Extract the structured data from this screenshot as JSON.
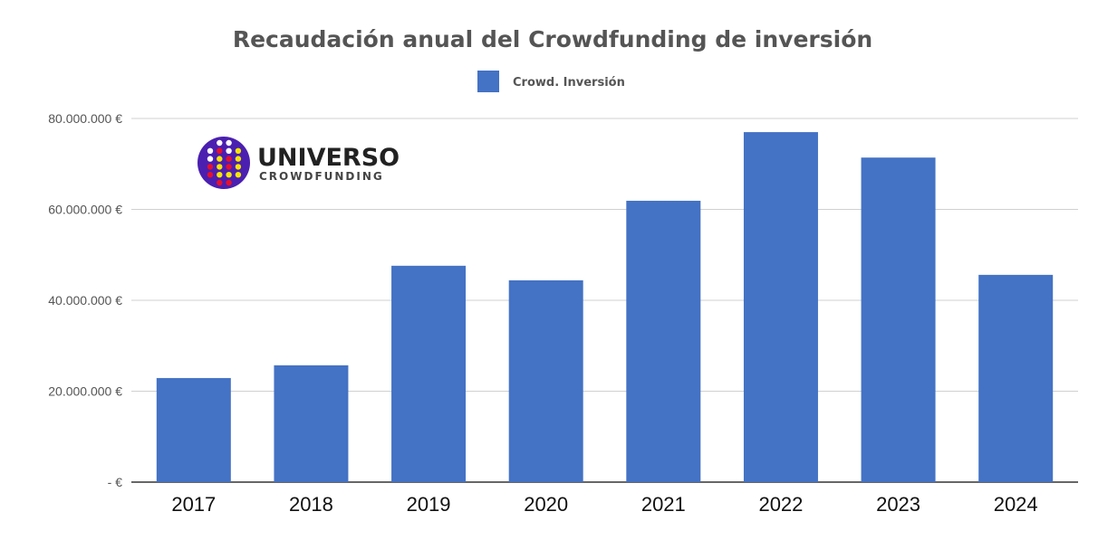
{
  "chart_data": {
    "type": "bar",
    "title": "Recaudación anual del Crowdfunding de inversión",
    "legend": [
      "Crowd. Inversión"
    ],
    "legend_position": "top-center",
    "categories": [
      "2017",
      "2018",
      "2019",
      "2020",
      "2021",
      "2022",
      "2023",
      "2024"
    ],
    "series": [
      {
        "name": "Crowd. Inversión",
        "values": [
          22900000,
          25700000,
          47600000,
          44400000,
          61900000,
          77000000,
          71400000,
          45600000
        ]
      }
    ],
    "xlabel": "",
    "ylabel": "",
    "ylim": [
      0,
      80000000
    ],
    "yticks": [
      0,
      20000000,
      40000000,
      60000000,
      80000000
    ],
    "ytick_labels": [
      "-  €",
      "20.000.000 €",
      "40.000.000 €",
      "60.000.000 €",
      "80.000.000 €"
    ],
    "grid": true,
    "colors": {
      "bar": "#4472c4",
      "grid": "#d0d0d0",
      "axis": "#333333"
    }
  },
  "logo": {
    "line1": "UNIVERSO",
    "line2": "CROWDFUNDING"
  }
}
